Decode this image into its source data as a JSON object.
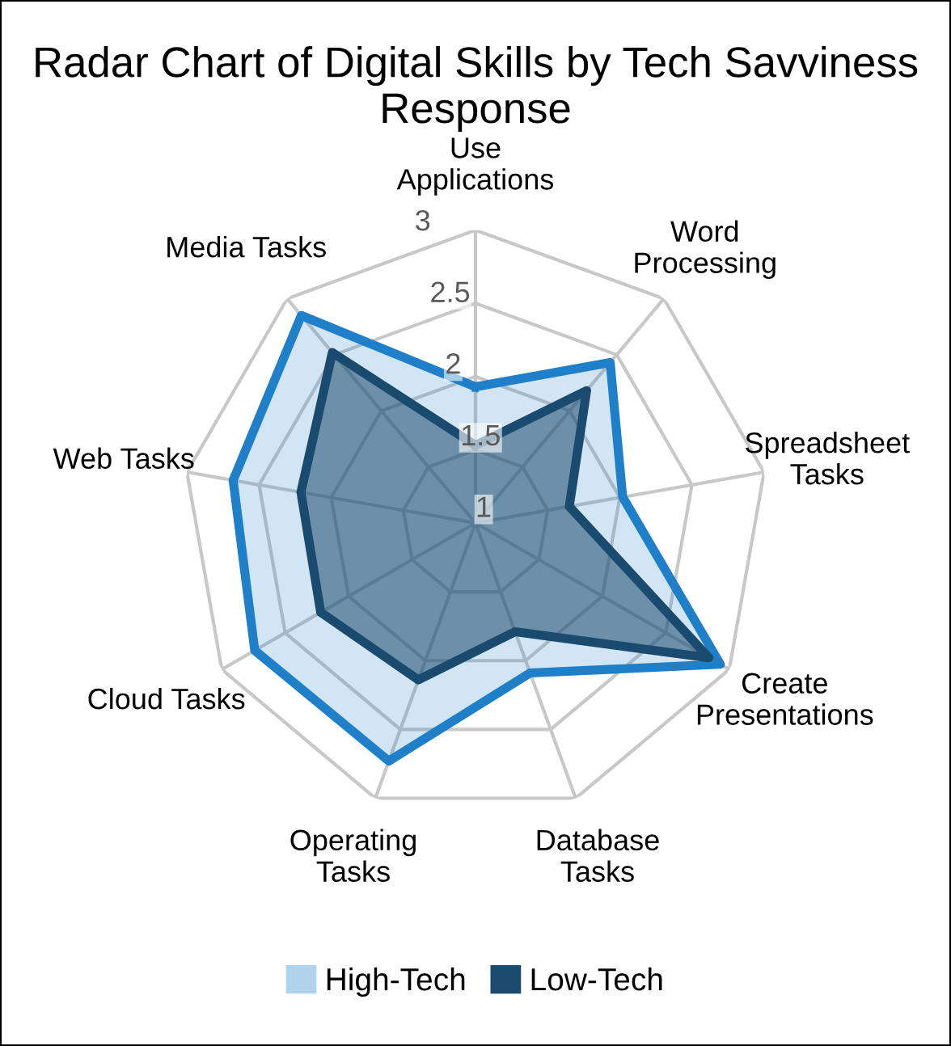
{
  "chart_data": {
    "type": "radar",
    "title": "Radar Chart of Digital Skills by Tech Savviness Response",
    "categories": [
      "Use\nApplications",
      "Word\nProcessing",
      "Spreadsheet\nTasks",
      "Create\nPresentations",
      "Database\nTasks",
      "Operating\nTasks",
      "Cloud Tasks",
      "Web Tasks",
      "Media Tasks"
    ],
    "series": [
      {
        "name": "High-Tech",
        "color": "#1f7fc8",
        "values": [
          1.93,
          2.43,
          2.02,
          2.93,
          2.09,
          2.73,
          2.74,
          2.68,
          2.85
        ]
      },
      {
        "name": "Low-Tech",
        "color": "#1a4b6e",
        "values": [
          1.53,
          2.18,
          1.65,
          2.84,
          1.79,
          2.14,
          2.22,
          2.21,
          2.52
        ]
      }
    ],
    "ylim": [
      1,
      3
    ],
    "yticks": [
      1,
      1.5,
      2,
      2.5,
      3
    ],
    "grid": true,
    "legend": "bottom",
    "marker": "none",
    "line_style": "solid"
  }
}
